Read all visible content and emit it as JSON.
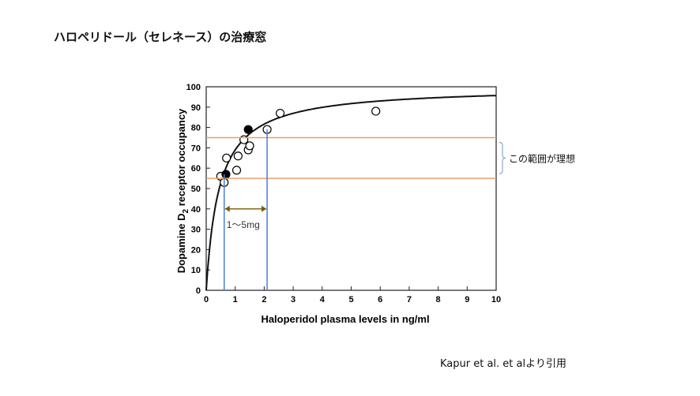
{
  "slide": {
    "title": "ハロペリドール（セレネース）の治療窓",
    "citation": "Kapur et al. et alより引用"
  },
  "colors": {
    "window_line": "#e6a070",
    "plasma_line": "#4a7fd4",
    "range_arrow": "#7a5a00",
    "bracket": "#8aaad6",
    "curve": "#111111"
  },
  "chart_data": {
    "type": "scatter",
    "xlabel": "Haloperidol plasma levels in ng/ml",
    "ylabel_main": "Dopamine D",
    "ylabel_sub": "2",
    "ylabel_rest": " receptor occupancy",
    "xlim": [
      0,
      10
    ],
    "ylim": [
      0,
      100
    ],
    "xticks": [
      "0",
      "1",
      "2",
      "3",
      "4",
      "5",
      "6",
      "7",
      "8",
      "9",
      "10"
    ],
    "yticks": [
      "0",
      "10",
      "20",
      "30",
      "40",
      "50",
      "60",
      "70",
      "80",
      "90",
      "100"
    ],
    "grid": false,
    "series": [
      {
        "marker": "open-circle",
        "points": [
          [
            0.5,
            56
          ],
          [
            0.62,
            53
          ],
          [
            0.7,
            65
          ],
          [
            1.05,
            59
          ],
          [
            1.1,
            66
          ],
          [
            1.3,
            74
          ],
          [
            1.45,
            69
          ],
          [
            1.5,
            71
          ],
          [
            2.1,
            79
          ],
          [
            2.55,
            87
          ],
          [
            5.85,
            88
          ]
        ]
      },
      {
        "marker": "filled-circle",
        "points": [
          [
            0.68,
            57
          ],
          [
            1.45,
            79
          ]
        ]
      }
    ],
    "fit_curve": {
      "emax": 100,
      "ec50": 0.45
    },
    "therapeutic_window": {
      "lower": 55,
      "upper": 75,
      "label": "この範囲が理想"
    },
    "plasma_range": {
      "x_low": 0.62,
      "x_high": 2.1,
      "label": "1～5mg"
    }
  }
}
